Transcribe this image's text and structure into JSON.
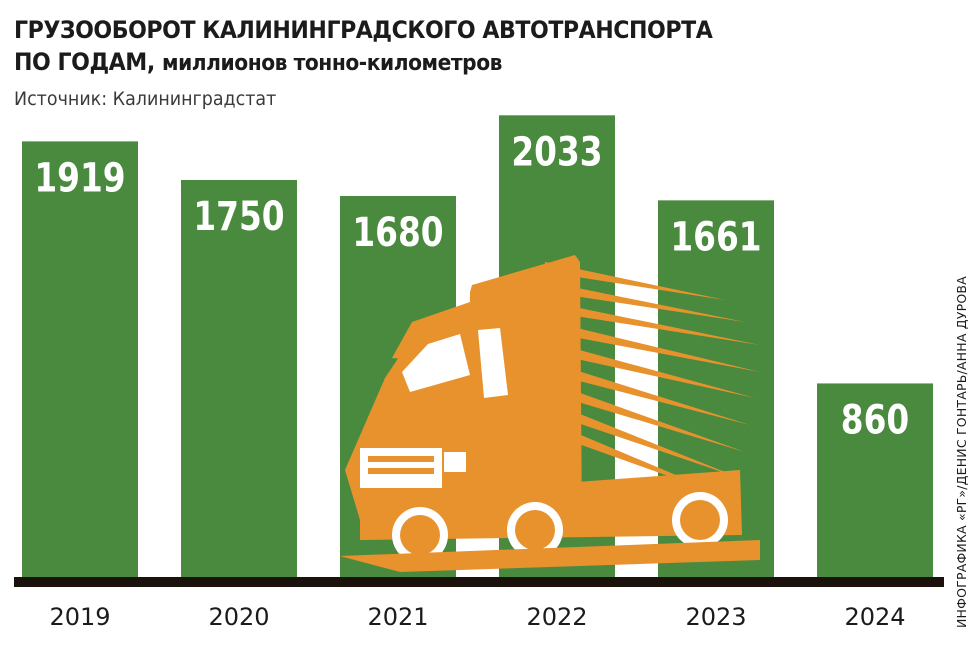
{
  "header": {
    "title_line1": "ГРУЗООБОРОТ КАЛИНИНГРАДСКОГО АВТОТРАНСПОРТА",
    "title_line2_bold": "ПО ГОДАМ,",
    "title_line2_rest": "миллионов тонно-километров",
    "source": "Источник: Калининградстат",
    "credit": "ИНФОГРАФИКА «РГ»/ДЕНИС ГОНТАРЬ/АННА ДУРОВА"
  },
  "colors": {
    "bar": "#4a8a3f",
    "truck": "#e8922e",
    "baseline": "#1b120c",
    "value_text": "#ffffff"
  },
  "chart_data": {
    "type": "bar",
    "title": "ГРУЗООБОРОТ КАЛИНИНГРАДСКОГО АВТОТРАНСПОРТА ПО ГОДАМ, миллионов тонно-километров",
    "categories": [
      "2019",
      "2020",
      "2021",
      "2022",
      "2023",
      "2024"
    ],
    "values": [
      1919,
      1750,
      1680,
      2033,
      1661,
      860
    ],
    "unit": "миллионов тонно-километров",
    "ylim": [
      0,
      2100
    ],
    "grid": false,
    "legend": "none",
    "data_labels": true,
    "decoration": "truck-illustration"
  }
}
